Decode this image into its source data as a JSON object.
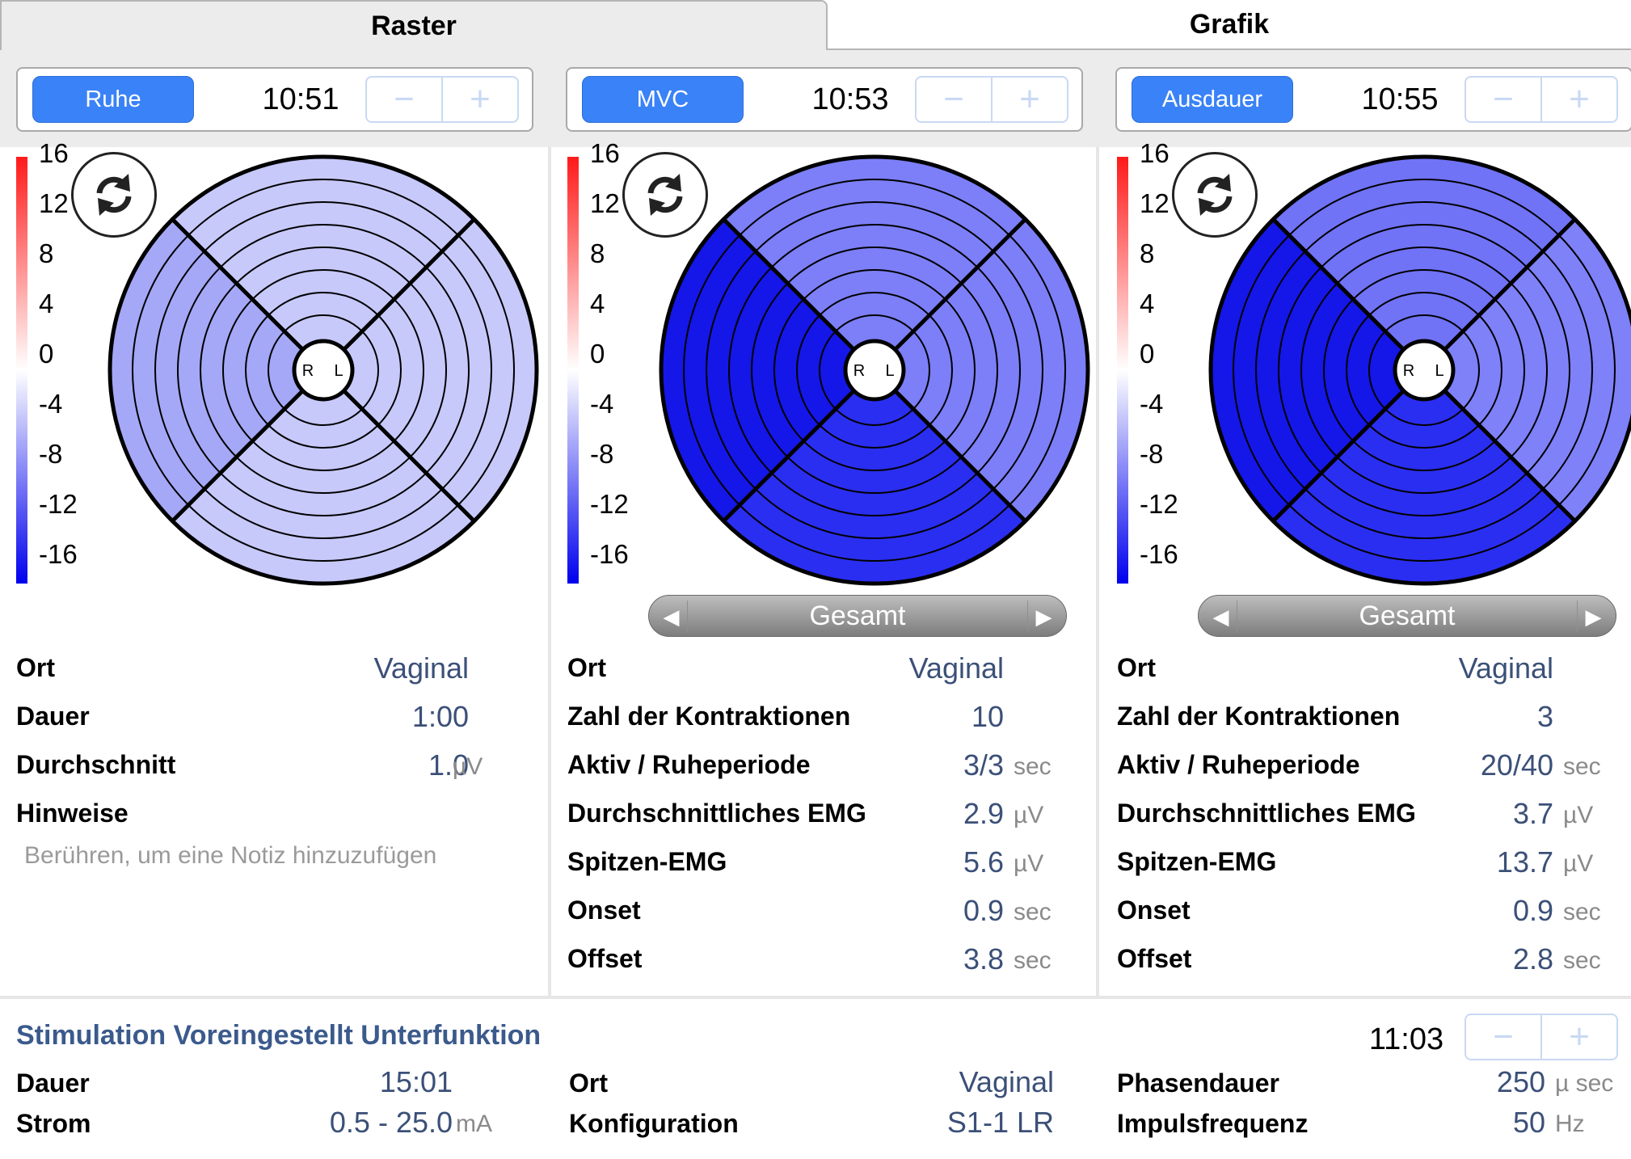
{
  "tabs": {
    "raster": "Raster",
    "grafik": "Grafik"
  },
  "legend_ticks": [
    "16",
    "12",
    "8",
    "4",
    "0",
    "-4",
    "-8",
    "-12",
    "-16"
  ],
  "colors": {
    "accent": "#3a82f7",
    "value_text": "#3b5078",
    "title_text": "#3b5a8c"
  },
  "sessions": [
    {
      "mode": "Ruhe",
      "time": "10:51",
      "stepper": {
        "minus": "−",
        "plus": "+"
      },
      "center": {
        "r": "R",
        "l": "L"
      },
      "stats": [
        {
          "label": "Ort",
          "value": "Vaginal",
          "unit": ""
        },
        {
          "label": "Dauer",
          "value": "1:00",
          "unit": ""
        },
        {
          "label": "Durchschnitt",
          "value": "1.0",
          "unit": "µV"
        },
        {
          "label": "Hinweise",
          "value": "",
          "unit": ""
        }
      ],
      "notes_placeholder": "Berühren, um eine Notiz hinzuzufügen"
    },
    {
      "mode": "MVC",
      "time": "10:53",
      "stepper": {
        "minus": "−",
        "plus": "+"
      },
      "center": {
        "r": "R",
        "l": "L"
      },
      "selector": {
        "label": "Gesamt",
        "prev": "◀",
        "next": "▶"
      },
      "stats": [
        {
          "label": "Ort",
          "value": "Vaginal",
          "unit": ""
        },
        {
          "label": "Zahl der Kontraktionen",
          "value": "10",
          "unit": ""
        },
        {
          "label": "Aktiv / Ruheperiode",
          "value": "3/3",
          "unit": "sec"
        },
        {
          "label": "Durchschnittliches EMG",
          "value": "2.9",
          "unit": "µV"
        },
        {
          "label": "Spitzen-EMG",
          "value": "5.6",
          "unit": "µV"
        },
        {
          "label": "Onset",
          "value": "0.9",
          "unit": "sec"
        },
        {
          "label": "Offset",
          "value": "3.8",
          "unit": "sec"
        }
      ]
    },
    {
      "mode": "Ausdauer",
      "time": "10:55",
      "stepper": {
        "minus": "−",
        "plus": "+"
      },
      "center": {
        "r": "R",
        "l": "L"
      },
      "selector": {
        "label": "Gesamt",
        "prev": "◀",
        "next": "▶"
      },
      "stats": [
        {
          "label": "Ort",
          "value": "Vaginal",
          "unit": ""
        },
        {
          "label": "Zahl der Kontraktionen",
          "value": "3",
          "unit": ""
        },
        {
          "label": "Aktiv / Ruheperiode",
          "value": "20/40",
          "unit": "sec"
        },
        {
          "label": "Durchschnittliches EMG",
          "value": "3.7",
          "unit": "µV"
        },
        {
          "label": "Spitzen-EMG",
          "value": "13.7",
          "unit": "µV"
        },
        {
          "label": "Onset",
          "value": "0.9",
          "unit": "sec"
        },
        {
          "label": "Offset",
          "value": "2.8",
          "unit": "sec"
        }
      ]
    }
  ],
  "stimulation": {
    "title": "Stimulation Voreingestellt Unterfunktion",
    "time": "11:03",
    "stepper": {
      "minus": "−",
      "plus": "+"
    },
    "dauer": {
      "label": "Dauer",
      "value": "15:01",
      "unit": ""
    },
    "strom": {
      "label": "Strom",
      "value": "0.5 - 25.0",
      "unit": "mA"
    },
    "ort": {
      "label": "Ort",
      "value": "Vaginal",
      "unit": ""
    },
    "konfiguration": {
      "label": "Konfiguration",
      "value": "S1-1 LR",
      "unit": ""
    },
    "phasendauer": {
      "label": "Phasendauer",
      "value": "250",
      "unit": "µ sec"
    },
    "impulsfrequenz": {
      "label": "Impulsfrequenz",
      "value": "50",
      "unit": "Hz"
    }
  },
  "polar_fill": [
    {
      "top": "#c7c9fb",
      "right": "#c7c9fb",
      "bottom": "#c7c9fb",
      "left": "#a5a8f6"
    },
    {
      "top": "#7c7ff7",
      "right": "#7c7ff7",
      "bottom": "#2a2ef0",
      "left": "#1417e8"
    },
    {
      "top": "#7073f6",
      "right": "#7e81f8",
      "bottom": "#2a2ef0",
      "left": "#1417e8"
    }
  ]
}
